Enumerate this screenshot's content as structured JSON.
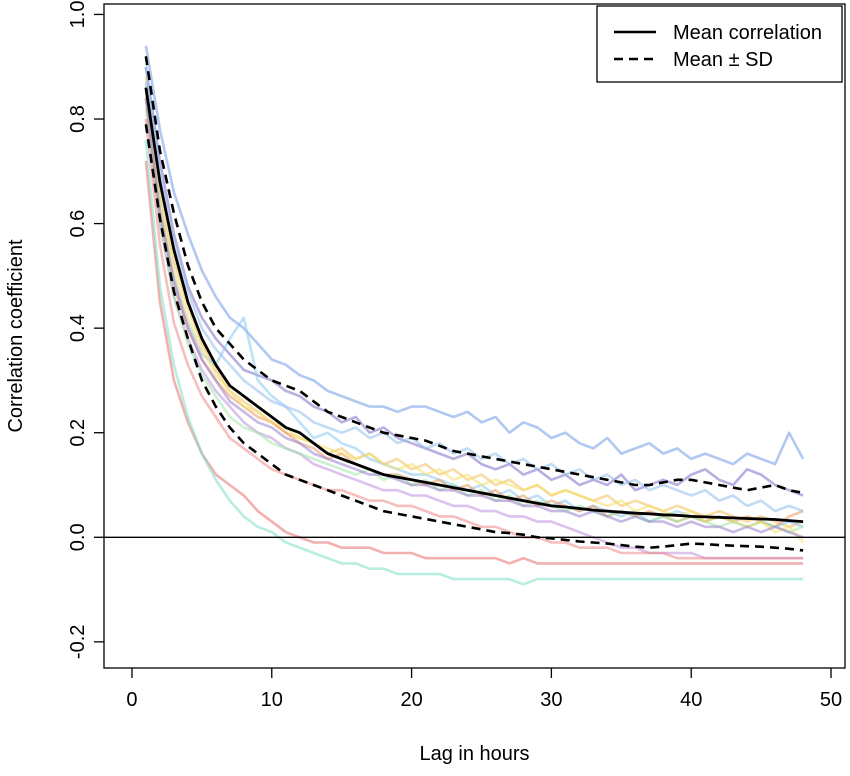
{
  "chart_data": {
    "type": "line",
    "title": "",
    "xlabel": "Lag in hours",
    "ylabel": "Correlation coefficient",
    "xlim": [
      -2,
      51
    ],
    "ylim": [
      -0.25,
      1.02
    ],
    "xticks": [
      0,
      10,
      20,
      30,
      40,
      50
    ],
    "yticks": [
      -0.2,
      0.0,
      0.2,
      0.4,
      0.6,
      0.8,
      1.0
    ],
    "xtick_labels": [
      "0",
      "10",
      "20",
      "30",
      "40",
      "50"
    ],
    "ytick_labels": [
      "-0.2",
      "0.0",
      "0.2",
      "0.4",
      "0.6",
      "0.8",
      "1.0"
    ],
    "reference_line_y": 0,
    "legend": {
      "position": "top-right",
      "entries": [
        {
          "label": "Mean correlation",
          "style": "solid"
        },
        {
          "label": "Mean ± SD",
          "style": "dashed"
        }
      ]
    },
    "mean": {
      "name": "Mean correlation",
      "x": [
        1,
        2,
        3,
        4,
        5,
        6,
        7,
        8,
        9,
        10,
        11,
        12,
        13,
        14,
        15,
        16,
        17,
        18,
        19,
        20,
        21,
        22,
        23,
        24,
        25,
        26,
        27,
        28,
        29,
        30,
        31,
        32,
        33,
        34,
        35,
        36,
        37,
        38,
        39,
        40,
        41,
        42,
        43,
        44,
        45,
        46,
        47,
        48
      ],
      "y": [
        0.86,
        0.68,
        0.55,
        0.45,
        0.38,
        0.33,
        0.29,
        0.27,
        0.25,
        0.23,
        0.21,
        0.2,
        0.18,
        0.16,
        0.15,
        0.14,
        0.13,
        0.12,
        0.115,
        0.11,
        0.105,
        0.1,
        0.095,
        0.09,
        0.085,
        0.08,
        0.075,
        0.07,
        0.065,
        0.06,
        0.058,
        0.055,
        0.052,
        0.05,
        0.048,
        0.046,
        0.045,
        0.043,
        0.042,
        0.04,
        0.039,
        0.038,
        0.037,
        0.036,
        0.035,
        0.034,
        0.032,
        0.03
      ]
    },
    "sd_upper": {
      "name": "Mean + SD",
      "y": [
        0.92,
        0.74,
        0.62,
        0.52,
        0.45,
        0.4,
        0.37,
        0.34,
        0.32,
        0.3,
        0.29,
        0.28,
        0.26,
        0.24,
        0.23,
        0.22,
        0.21,
        0.2,
        0.195,
        0.19,
        0.185,
        0.175,
        0.165,
        0.16,
        0.155,
        0.15,
        0.145,
        0.14,
        0.135,
        0.13,
        0.125,
        0.12,
        0.115,
        0.11,
        0.105,
        0.1,
        0.1,
        0.105,
        0.11,
        0.11,
        0.105,
        0.1,
        0.095,
        0.09,
        0.095,
        0.1,
        0.09,
        0.085
      ]
    },
    "sd_lower": {
      "name": "Mean - SD",
      "y": [
        0.79,
        0.61,
        0.47,
        0.38,
        0.3,
        0.25,
        0.21,
        0.18,
        0.16,
        0.14,
        0.12,
        0.11,
        0.1,
        0.09,
        0.08,
        0.07,
        0.06,
        0.05,
        0.045,
        0.04,
        0.035,
        0.03,
        0.025,
        0.02,
        0.015,
        0.01,
        0.008,
        0.005,
        0.0,
        -0.002,
        -0.005,
        -0.008,
        -0.01,
        -0.012,
        -0.015,
        -0.018,
        -0.02,
        -0.018,
        -0.015,
        -0.012,
        -0.013,
        -0.015,
        -0.016,
        -0.017,
        -0.018,
        -0.02,
        -0.022,
        -0.025
      ]
    },
    "individual_series": [
      {
        "color": "#6f9be8",
        "y": [
          0.94,
          0.78,
          0.66,
          0.58,
          0.51,
          0.46,
          0.42,
          0.4,
          0.37,
          0.34,
          0.33,
          0.31,
          0.3,
          0.28,
          0.27,
          0.26,
          0.25,
          0.25,
          0.24,
          0.25,
          0.25,
          0.24,
          0.23,
          0.24,
          0.22,
          0.23,
          0.2,
          0.22,
          0.21,
          0.19,
          0.2,
          0.18,
          0.17,
          0.19,
          0.16,
          0.17,
          0.18,
          0.16,
          0.17,
          0.15,
          0.16,
          0.15,
          0.14,
          0.16,
          0.15,
          0.14,
          0.2,
          0.15
        ]
      },
      {
        "color": "#7b6fc9",
        "y": [
          0.9,
          0.72,
          0.58,
          0.48,
          0.42,
          0.38,
          0.35,
          0.32,
          0.31,
          0.3,
          0.28,
          0.27,
          0.25,
          0.24,
          0.22,
          0.23,
          0.2,
          0.21,
          0.19,
          0.18,
          0.17,
          0.16,
          0.15,
          0.16,
          0.14,
          0.13,
          0.14,
          0.12,
          0.13,
          0.11,
          0.12,
          0.1,
          0.11,
          0.1,
          0.12,
          0.09,
          0.1,
          0.11,
          0.1,
          0.12,
          0.13,
          0.11,
          0.1,
          0.13,
          0.12,
          0.1,
          0.09,
          0.08
        ]
      },
      {
        "color": "#e8716f",
        "y": [
          0.72,
          0.45,
          0.3,
          0.22,
          0.16,
          0.12,
          0.1,
          0.08,
          0.05,
          0.03,
          0.01,
          0.0,
          -0.01,
          -0.01,
          -0.02,
          -0.02,
          -0.02,
          -0.03,
          -0.03,
          -0.03,
          -0.04,
          -0.04,
          -0.04,
          -0.04,
          -0.04,
          -0.04,
          -0.05,
          -0.04,
          -0.05,
          -0.05,
          -0.05,
          -0.05,
          -0.05,
          -0.05,
          -0.05,
          -0.05,
          -0.05,
          -0.05,
          -0.05,
          -0.05,
          -0.05,
          -0.05,
          -0.05,
          -0.05,
          -0.05,
          -0.05,
          -0.05,
          -0.05
        ]
      },
      {
        "color": "#7ee0c8",
        "y": [
          0.76,
          0.48,
          0.33,
          0.23,
          0.16,
          0.11,
          0.07,
          0.04,
          0.02,
          0.01,
          -0.01,
          -0.02,
          -0.03,
          -0.04,
          -0.05,
          -0.05,
          -0.06,
          -0.06,
          -0.07,
          -0.07,
          -0.07,
          -0.07,
          -0.08,
          -0.08,
          -0.08,
          -0.08,
          -0.08,
          -0.09,
          -0.08,
          -0.08,
          -0.08,
          -0.08,
          -0.08,
          -0.08,
          -0.08,
          -0.08,
          -0.08,
          -0.08,
          -0.08,
          -0.08,
          -0.08,
          -0.08,
          -0.08,
          -0.08,
          -0.08,
          -0.08,
          -0.08,
          -0.08
        ]
      },
      {
        "color": "#f0c060",
        "y": [
          0.88,
          0.66,
          0.53,
          0.44,
          0.37,
          0.32,
          0.28,
          0.26,
          0.24,
          0.22,
          0.2,
          0.19,
          0.18,
          0.16,
          0.17,
          0.15,
          0.16,
          0.14,
          0.15,
          0.13,
          0.14,
          0.12,
          0.13,
          0.11,
          0.12,
          0.1,
          0.11,
          0.09,
          0.1,
          0.08,
          0.09,
          0.08,
          0.07,
          0.08,
          0.06,
          0.07,
          0.06,
          0.05,
          0.06,
          0.05,
          0.04,
          0.05,
          0.04,
          0.03,
          0.04,
          0.03,
          0.02,
          0.03
        ]
      },
      {
        "color": "#88c8f0",
        "y": [
          0.87,
          0.64,
          0.5,
          0.41,
          0.35,
          0.33,
          0.38,
          0.42,
          0.3,
          0.27,
          0.25,
          0.22,
          0.19,
          0.2,
          0.18,
          0.17,
          0.15,
          0.14,
          0.13,
          0.12,
          0.12,
          0.11,
          0.1,
          0.09,
          0.1,
          0.08,
          0.09,
          0.07,
          0.08,
          0.06,
          0.07,
          0.05,
          0.06,
          0.05,
          0.04,
          0.05,
          0.03,
          0.04,
          0.05,
          0.04,
          0.03,
          0.04,
          0.03,
          0.02,
          0.03,
          0.02,
          0.03,
          0.02
        ]
      },
      {
        "color": "#e89a60",
        "y": [
          0.84,
          0.62,
          0.48,
          0.4,
          0.34,
          0.3,
          0.27,
          0.25,
          0.23,
          0.22,
          0.2,
          0.18,
          0.17,
          0.15,
          0.16,
          0.14,
          0.13,
          0.12,
          0.12,
          0.11,
          0.1,
          0.11,
          0.09,
          0.1,
          0.08,
          0.09,
          0.07,
          0.08,
          0.06,
          0.07,
          0.06,
          0.05,
          0.06,
          0.04,
          0.05,
          0.04,
          0.05,
          0.04,
          0.03,
          0.04,
          0.03,
          0.04,
          0.03,
          0.04,
          0.03,
          0.02,
          0.04,
          0.05
        ]
      },
      {
        "color": "#c090e0",
        "y": [
          0.86,
          0.6,
          0.46,
          0.38,
          0.32,
          0.28,
          0.25,
          0.22,
          0.2,
          0.19,
          0.17,
          0.16,
          0.14,
          0.13,
          0.12,
          0.11,
          0.1,
          0.09,
          0.09,
          0.08,
          0.08,
          0.07,
          0.06,
          0.06,
          0.05,
          0.05,
          0.04,
          0.04,
          0.03,
          0.03,
          0.02,
          0.01,
          0.0,
          -0.01,
          -0.02,
          -0.02,
          -0.03,
          -0.03,
          -0.03,
          -0.03,
          -0.04,
          -0.04,
          -0.04,
          -0.04,
          -0.04,
          -0.04,
          -0.04,
          -0.04
        ]
      },
      {
        "color": "#a0e8a8",
        "y": [
          0.82,
          0.6,
          0.46,
          0.37,
          0.31,
          0.27,
          0.23,
          0.21,
          0.2,
          0.18,
          0.17,
          0.16,
          0.15,
          0.14,
          0.13,
          0.12,
          0.13,
          0.11,
          0.12,
          0.1,
          0.11,
          0.09,
          0.1,
          0.08,
          0.09,
          0.07,
          0.08,
          0.06,
          0.07,
          0.06,
          0.05,
          0.06,
          0.05,
          0.04,
          0.05,
          0.04,
          0.03,
          0.04,
          0.03,
          0.04,
          0.03,
          0.02,
          0.03,
          0.02,
          0.03,
          0.02,
          0.01,
          0.02
        ]
      },
      {
        "color": "#f5e06a",
        "y": [
          0.85,
          0.64,
          0.51,
          0.42,
          0.36,
          0.31,
          0.28,
          0.25,
          0.24,
          0.22,
          0.21,
          0.19,
          0.18,
          0.17,
          0.16,
          0.15,
          0.16,
          0.14,
          0.13,
          0.14,
          0.12,
          0.13,
          0.11,
          0.12,
          0.1,
          0.11,
          0.1,
          0.09,
          0.1,
          0.08,
          0.09,
          0.08,
          0.07,
          0.06,
          0.07,
          0.05,
          0.06,
          0.05,
          0.04,
          0.05,
          0.03,
          0.04,
          0.03,
          0.02,
          0.03,
          0.01,
          0.02,
          -0.01
        ]
      },
      {
        "color": "#9a7fd0",
        "y": [
          0.84,
          0.62,
          0.49,
          0.4,
          0.34,
          0.3,
          0.26,
          0.24,
          0.22,
          0.21,
          0.19,
          0.18,
          0.16,
          0.15,
          0.14,
          0.13,
          0.12,
          0.12,
          0.11,
          0.1,
          0.1,
          0.09,
          0.09,
          0.08,
          0.08,
          0.07,
          0.07,
          0.06,
          0.06,
          0.05,
          0.05,
          0.04,
          0.05,
          0.04,
          0.03,
          0.04,
          0.03,
          0.03,
          0.02,
          0.03,
          0.02,
          0.02,
          0.01,
          0.02,
          0.01,
          0.02,
          0.01,
          0.0
        ]
      },
      {
        "color": "#ef8a8a",
        "y": [
          0.8,
          0.56,
          0.41,
          0.33,
          0.27,
          0.23,
          0.19,
          0.17,
          0.15,
          0.13,
          0.12,
          0.11,
          0.1,
          0.09,
          0.09,
          0.08,
          0.07,
          0.07,
          0.06,
          0.06,
          0.05,
          0.04,
          0.04,
          0.03,
          0.02,
          0.02,
          0.01,
          0.0,
          0.0,
          -0.01,
          -0.01,
          -0.02,
          -0.02,
          -0.02,
          -0.03,
          -0.03,
          -0.03,
          -0.03,
          -0.04,
          -0.04,
          -0.04,
          -0.04,
          -0.04,
          -0.04,
          -0.04,
          -0.04,
          -0.04,
          -0.04
        ]
      },
      {
        "color": "#8fc0ee",
        "y": [
          0.9,
          0.7,
          0.56,
          0.47,
          0.4,
          0.36,
          0.33,
          0.3,
          0.28,
          0.26,
          0.25,
          0.24,
          0.22,
          0.21,
          0.2,
          0.21,
          0.19,
          0.2,
          0.18,
          0.19,
          0.17,
          0.18,
          0.16,
          0.17,
          0.15,
          0.16,
          0.14,
          0.15,
          0.13,
          0.14,
          0.12,
          0.13,
          0.11,
          0.12,
          0.1,
          0.11,
          0.09,
          0.1,
          0.09,
          0.08,
          0.09,
          0.07,
          0.08,
          0.06,
          0.07,
          0.05,
          0.06,
          0.05
        ]
      }
    ]
  }
}
